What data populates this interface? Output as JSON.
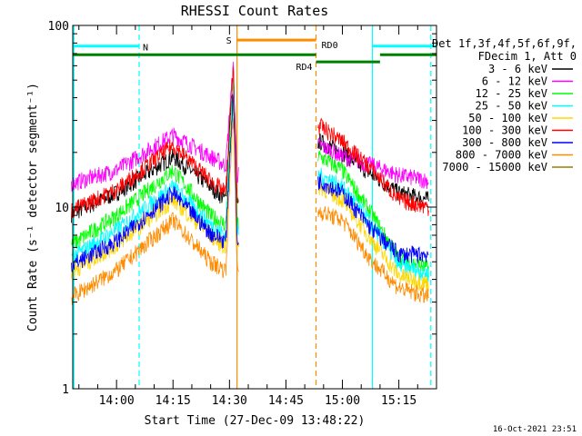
{
  "chart_data": {
    "type": "line",
    "title": "RHESSI Count Rates",
    "xlabel": "Start Time (27-Dec-09 13:48:22)",
    "ylabel": "Count Rate (s⁻¹ detector segment⁻¹)",
    "y_scale": "log",
    "ylim": [
      1,
      100
    ],
    "xlim": [
      "13:48:22",
      "15:25:00"
    ],
    "x_ticks": [
      "14:00",
      "14:15",
      "14:30",
      "14:45",
      "15:00",
      "15:15"
    ],
    "y_ticks": [
      "1",
      "10",
      "100"
    ],
    "timestamp": "16-Oct-2021 23:51",
    "legend": {
      "placement": "right",
      "header": [
        "Det 1f,3f,4f,5f,6f,9f,",
        "FDecim 1, Att 0"
      ]
    },
    "series": [
      {
        "name": "3 - 6 keV",
        "color": "#000000",
        "values": [
          [
            "13:48",
            9.2
          ],
          [
            "14:00",
            12
          ],
          [
            "14:15",
            19
          ],
          [
            "14:25",
            13
          ],
          [
            "14:29",
            11
          ],
          [
            "14:31",
            58
          ],
          [
            "14:32",
            10
          ],
          [
            "14:54",
            23
          ],
          [
            "15:00",
            20
          ],
          [
            "15:08",
            15
          ],
          [
            "15:15",
            12
          ],
          [
            "15:23",
            11
          ]
        ]
      },
      {
        "name": "6 - 12 keV",
        "color": "#ff00ff",
        "values": [
          [
            "13:48",
            13.5
          ],
          [
            "14:00",
            16
          ],
          [
            "14:15",
            25
          ],
          [
            "14:25",
            19
          ],
          [
            "14:29",
            17
          ],
          [
            "14:31",
            60
          ],
          [
            "14:32",
            15
          ],
          [
            "14:54",
            22
          ],
          [
            "15:00",
            19
          ],
          [
            "15:08",
            17
          ],
          [
            "15:15",
            15
          ],
          [
            "15:23",
            14
          ]
        ]
      },
      {
        "name": "12 - 25 keV",
        "color": "#00ff00",
        "values": [
          [
            "13:48",
            6.2
          ],
          [
            "14:00",
            9
          ],
          [
            "14:15",
            16
          ],
          [
            "14:25",
            9
          ],
          [
            "14:29",
            8
          ],
          [
            "14:31",
            52
          ],
          [
            "14:32",
            8
          ],
          [
            "14:54",
            19
          ],
          [
            "15:00",
            16
          ],
          [
            "15:08",
            9
          ],
          [
            "15:15",
            5.2
          ],
          [
            "15:23",
            4.6
          ]
        ]
      },
      {
        "name": "25 - 50 keV",
        "color": "#00ffff",
        "values": [
          [
            "13:48",
            5.3
          ],
          [
            "14:00",
            7.5
          ],
          [
            "14:15",
            13
          ],
          [
            "14:25",
            8
          ],
          [
            "14:29",
            7
          ],
          [
            "14:31",
            45
          ],
          [
            "14:32",
            7
          ],
          [
            "14:54",
            15
          ],
          [
            "15:00",
            13
          ],
          [
            "15:08",
            8
          ],
          [
            "15:15",
            4.8
          ],
          [
            "15:23",
            4.3
          ]
        ]
      },
      {
        "name": "50 - 100 keV",
        "color": "#ffd700",
        "values": [
          [
            "13:48",
            4.4
          ],
          [
            "14:00",
            6.2
          ],
          [
            "14:15",
            11
          ],
          [
            "14:25",
            7
          ],
          [
            "14:29",
            6
          ],
          [
            "14:31",
            40
          ],
          [
            "14:32",
            6
          ],
          [
            "14:54",
            13
          ],
          [
            "15:00",
            11
          ],
          [
            "15:08",
            6.5
          ],
          [
            "15:15",
            4.2
          ],
          [
            "15:23",
            3.8
          ]
        ]
      },
      {
        "name": "100 - 300 keV",
        "color": "#ff0000",
        "values": [
          [
            "13:48",
            9.6
          ],
          [
            "14:00",
            12.5
          ],
          [
            "14:15",
            22
          ],
          [
            "14:25",
            14
          ],
          [
            "14:29",
            12
          ],
          [
            "14:31",
            62
          ],
          [
            "14:32",
            11
          ],
          [
            "14:54",
            28
          ],
          [
            "15:00",
            23
          ],
          [
            "15:08",
            16
          ],
          [
            "15:15",
            11
          ],
          [
            "15:23",
            10
          ]
        ]
      },
      {
        "name": "300 - 800 keV",
        "color": "#0000ff",
        "values": [
          [
            "13:48",
            4.8
          ],
          [
            "14:00",
            6.5
          ],
          [
            "14:15",
            12
          ],
          [
            "14:25",
            7.2
          ],
          [
            "14:29",
            6.5
          ],
          [
            "14:31",
            44
          ],
          [
            "14:32",
            6.5
          ],
          [
            "14:54",
            14
          ],
          [
            "15:00",
            12
          ],
          [
            "15:08",
            7.5
          ],
          [
            "15:15",
            5.5
          ],
          [
            "15:23",
            5.5
          ]
        ]
      },
      {
        "name": "800 - 7000 keV",
        "color": "#ff8c00",
        "values": [
          [
            "13:48",
            3.2
          ],
          [
            "14:00",
            4.5
          ],
          [
            "14:15",
            8.5
          ],
          [
            "14:25",
            5
          ],
          [
            "14:29",
            4.5
          ],
          [
            "14:31",
            35
          ],
          [
            "14:32",
            4.5
          ],
          [
            "14:54",
            9.5
          ],
          [
            "15:00",
            8.5
          ],
          [
            "15:08",
            5
          ],
          [
            "15:15",
            3.6
          ],
          [
            "15:23",
            3.2
          ]
        ]
      },
      {
        "name": "7000 - 15000 keV",
        "color": "#9b7b00",
        "values": []
      }
    ],
    "bars": [
      {
        "label": "N",
        "color": "#00ffff",
        "value": 77,
        "segments": [
          [
            "13:48:22",
            "14:06:00"
          ],
          [
            "15:08:00",
            "15:25:00"
          ]
        ]
      },
      {
        "label": "S",
        "color": "#ff8c00",
        "value": 83,
        "segments": [
          [
            "14:32:00",
            "14:53:00"
          ]
        ]
      },
      {
        "label": "RD0",
        "color": "#008000",
        "value": 69,
        "segments": [
          [
            "13:48:22",
            "14:53:00"
          ],
          [
            "15:10:00",
            "15:25:00"
          ]
        ]
      },
      {
        "label": "RD4",
        "color": "#008000",
        "value": 63,
        "segments": [
          [
            "14:53:00",
            "15:10:00"
          ]
        ]
      }
    ],
    "vlines": [
      {
        "x": "13:48:40",
        "color": "#00ffff",
        "style": "solid"
      },
      {
        "x": "14:06:00",
        "color": "#00ffff",
        "style": "dashed"
      },
      {
        "x": "14:32:00",
        "color": "#ff8c00",
        "style": "solid"
      },
      {
        "x": "14:53:00",
        "color": "#ff8c00",
        "style": "dashed"
      },
      {
        "x": "15:08:00",
        "color": "#00ffff",
        "style": "solid"
      },
      {
        "x": "15:23:30",
        "color": "#00ffff",
        "style": "dashed"
      }
    ],
    "gaps": [
      [
        "14:32:30",
        "14:53:30"
      ],
      [
        "15:24:00",
        "15:25:00"
      ]
    ]
  }
}
